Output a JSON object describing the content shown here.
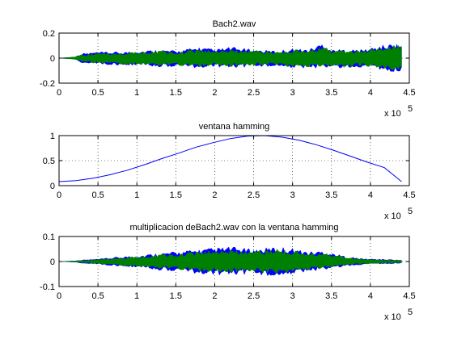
{
  "window": {
    "background": "#ffffff",
    "colors": {
      "blue": "#0000ff",
      "green": "#008000",
      "axis": "#000000"
    }
  },
  "chart_data": [
    {
      "type": "area",
      "title": "Bach2.wav",
      "xlabel": "",
      "ylabel": "",
      "xlim": [
        0,
        450000
      ],
      "ylim": [
        -0.2,
        0.2
      ],
      "x_ticks": [
        "0",
        "0.5",
        "1",
        "1.5",
        "2",
        "2.5",
        "3",
        "3.5",
        "4",
        "4.5"
      ],
      "y_ticks": [
        "-0.2",
        "0",
        "0.2"
      ],
      "x_exponent": {
        "base": "x 10",
        "power": "5"
      },
      "grid": true,
      "series": [
        {
          "color": "#0000ff",
          "x": [
            0,
            20000,
            30000,
            50000,
            80000,
            100000,
            130000,
            150000,
            180000,
            200000,
            220000,
            250000,
            280000,
            300000,
            320000,
            340000,
            350000,
            370000,
            390000,
            410000,
            430000,
            440000
          ],
          "upper": [
            0,
            0.01,
            0.04,
            0.05,
            0.05,
            0.06,
            0.07,
            0.06,
            0.09,
            0.07,
            0.09,
            0.07,
            0.06,
            0.08,
            0.07,
            0.13,
            0.07,
            0.07,
            0.07,
            0.1,
            0.12,
            0.11
          ],
          "lower": [
            0,
            -0.01,
            -0.04,
            -0.05,
            -0.06,
            -0.06,
            -0.07,
            -0.07,
            -0.08,
            -0.07,
            -0.08,
            -0.07,
            -0.07,
            -0.08,
            -0.08,
            -0.08,
            -0.08,
            -0.09,
            -0.07,
            -0.09,
            -0.11,
            -0.1
          ]
        },
        {
          "color": "#008000",
          "x": [
            0,
            20000,
            30000,
            50000,
            80000,
            100000,
            130000,
            150000,
            180000,
            200000,
            220000,
            250000,
            280000,
            300000,
            320000,
            340000,
            350000,
            370000,
            390000,
            410000,
            430000,
            440000
          ],
          "upper": [
            0,
            0.01,
            0.03,
            0.04,
            0.04,
            0.05,
            0.06,
            0.05,
            0.07,
            0.06,
            0.07,
            0.06,
            0.05,
            0.07,
            0.06,
            0.1,
            0.06,
            0.06,
            0.06,
            0.09,
            0.11,
            0.1
          ],
          "lower": [
            0,
            -0.01,
            -0.03,
            -0.04,
            -0.05,
            -0.05,
            -0.06,
            -0.06,
            -0.07,
            -0.06,
            -0.07,
            -0.06,
            -0.06,
            -0.07,
            -0.07,
            -0.07,
            -0.07,
            -0.08,
            -0.06,
            -0.08,
            -0.1,
            -0.09
          ]
        }
      ]
    },
    {
      "type": "line",
      "title": "ventana hamming",
      "xlabel": "",
      "ylabel": "",
      "xlim": [
        0,
        450000
      ],
      "ylim": [
        0,
        1
      ],
      "x_ticks": [
        "0",
        "0.5",
        "1",
        "1.5",
        "2",
        "2.5",
        "3",
        "3.5",
        "4",
        "4.5"
      ],
      "y_ticks": [
        "0",
        "0.5",
        "1"
      ],
      "x_exponent": {
        "base": "x 10",
        "power": "5"
      },
      "grid": true,
      "series": [
        {
          "color": "#0000ff",
          "x": [
            0,
            22000,
            44000,
            66000,
            88000,
            110000,
            132000,
            154000,
            176000,
            198000,
            220000,
            242000,
            264000,
            286000,
            308000,
            330000,
            352000,
            374000,
            396000,
            418000,
            440000
          ],
          "y": [
            0.08,
            0.1,
            0.15,
            0.22,
            0.31,
            0.42,
            0.54,
            0.65,
            0.77,
            0.86,
            0.94,
            0.99,
            1.0,
            0.97,
            0.91,
            0.82,
            0.71,
            0.59,
            0.47,
            0.36,
            0.08
          ]
        }
      ]
    },
    {
      "type": "area",
      "title": "multiplicacion deBach2.wav con la ventana hamming",
      "xlabel": "",
      "ylabel": "",
      "xlim": [
        0,
        450000
      ],
      "ylim": [
        -0.1,
        0.1
      ],
      "x_ticks": [
        "0",
        "0.5",
        "1",
        "1.5",
        "2",
        "2.5",
        "3",
        "3.5",
        "4",
        "4.5"
      ],
      "y_ticks": [
        "-0.1",
        "0",
        "0.1"
      ],
      "x_exponent": {
        "base": "x 10",
        "power": "5"
      },
      "grid": true,
      "series": [
        {
          "color": "#0000ff",
          "x": [
            0,
            20000,
            30000,
            50000,
            80000,
            100000,
            130000,
            150000,
            180000,
            200000,
            220000,
            250000,
            280000,
            300000,
            320000,
            340000,
            350000,
            370000,
            390000,
            410000,
            430000,
            440000
          ],
          "upper": [
            0,
            0.003,
            0.007,
            0.01,
            0.02,
            0.025,
            0.035,
            0.04,
            0.05,
            0.055,
            0.06,
            0.05,
            0.06,
            0.055,
            0.04,
            0.045,
            0.035,
            0.02,
            0.012,
            0.01,
            0.008,
            0.006
          ],
          "lower": [
            0,
            -0.003,
            -0.007,
            -0.012,
            -0.02,
            -0.025,
            -0.035,
            -0.04,
            -0.05,
            -0.055,
            -0.055,
            -0.05,
            -0.065,
            -0.05,
            -0.04,
            -0.035,
            -0.03,
            -0.02,
            -0.012,
            -0.01,
            -0.008,
            -0.006
          ]
        },
        {
          "color": "#008000",
          "x": [
            0,
            20000,
            30000,
            50000,
            80000,
            100000,
            130000,
            150000,
            180000,
            200000,
            220000,
            250000,
            280000,
            300000,
            320000,
            340000,
            350000,
            370000,
            390000,
            410000,
            430000,
            440000
          ],
          "upper": [
            0,
            0.002,
            0.005,
            0.008,
            0.016,
            0.02,
            0.028,
            0.032,
            0.04,
            0.045,
            0.048,
            0.04,
            0.05,
            0.045,
            0.032,
            0.036,
            0.028,
            0.016,
            0.01,
            0.008,
            0.006,
            0.005
          ],
          "lower": [
            0,
            -0.002,
            -0.005,
            -0.009,
            -0.016,
            -0.02,
            -0.028,
            -0.032,
            -0.04,
            -0.045,
            -0.045,
            -0.04,
            -0.055,
            -0.04,
            -0.032,
            -0.028,
            -0.024,
            -0.016,
            -0.01,
            -0.008,
            -0.006,
            -0.005
          ]
        }
      ]
    }
  ]
}
